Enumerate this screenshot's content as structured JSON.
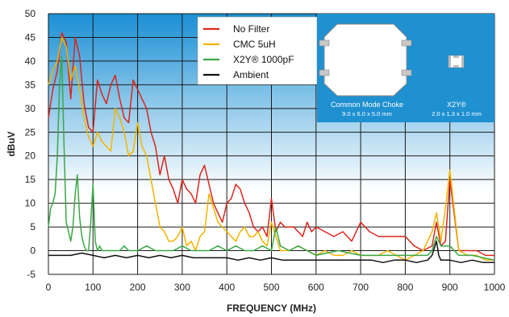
{
  "chart_data": {
    "type": "line",
    "title": "",
    "xlabel": "FREQUENCY (MHz)",
    "ylabel": "dBuV",
    "xlim": [
      0,
      1000
    ],
    "ylim": [
      -5,
      50
    ],
    "x_ticks": [
      0,
      100,
      200,
      300,
      400,
      500,
      600,
      700,
      800,
      900,
      1000
    ],
    "y_ticks": [
      -5,
      0,
      5,
      10,
      15,
      20,
      25,
      30,
      35,
      40,
      45,
      50
    ],
    "grid": true,
    "legend_position": "top-center",
    "series": [
      {
        "name": "No Filter",
        "color": "#d8261c",
        "x": [
          0,
          10,
          20,
          30,
          40,
          50,
          60,
          70,
          80,
          90,
          100,
          110,
          120,
          130,
          140,
          150,
          160,
          170,
          180,
          190,
          200,
          210,
          220,
          230,
          240,
          250,
          260,
          270,
          280,
          290,
          300,
          310,
          320,
          330,
          340,
          350,
          360,
          370,
          380,
          390,
          400,
          410,
          420,
          430,
          440,
          450,
          460,
          470,
          480,
          490,
          500,
          510,
          520,
          530,
          540,
          550,
          560,
          570,
          580,
          590,
          600,
          620,
          640,
          660,
          680,
          700,
          720,
          740,
          760,
          780,
          800,
          820,
          840,
          860,
          870,
          880,
          890,
          900,
          920,
          940,
          960,
          980,
          1000
        ],
        "y": [
          28,
          34,
          38,
          46,
          44,
          32,
          45,
          41,
          31,
          26,
          25,
          36,
          33,
          31,
          35,
          37,
          32,
          28,
          27,
          36,
          34,
          32,
          30,
          25,
          22,
          16,
          20,
          15,
          13,
          10,
          15,
          13,
          12,
          10,
          16,
          18,
          14,
          10,
          8,
          6,
          10,
          11,
          14,
          13,
          10,
          8,
          5,
          4,
          5,
          3,
          11,
          4,
          6,
          5,
          5,
          5,
          4,
          3,
          6,
          4,
          5,
          4,
          3,
          4,
          2,
          6,
          4,
          3,
          3,
          3,
          3,
          1,
          0,
          1,
          6,
          1,
          2,
          15,
          0,
          0,
          0,
          -1,
          -1
        ]
      },
      {
        "name": "CMC 5uH",
        "color": "#f4b400",
        "x": [
          0,
          10,
          20,
          30,
          40,
          50,
          60,
          70,
          80,
          90,
          100,
          110,
          120,
          130,
          140,
          150,
          160,
          170,
          180,
          190,
          200,
          210,
          220,
          230,
          240,
          250,
          260,
          270,
          280,
          290,
          300,
          310,
          320,
          330,
          340,
          350,
          360,
          370,
          380,
          390,
          400,
          410,
          420,
          430,
          440,
          450,
          460,
          470,
          480,
          490,
          500,
          520,
          540,
          560,
          580,
          600,
          620,
          640,
          660,
          680,
          700,
          720,
          740,
          760,
          780,
          800,
          820,
          840,
          860,
          870,
          880,
          890,
          900,
          920,
          940,
          960,
          980,
          1000
        ],
        "y": [
          35,
          38,
          40,
          45,
          43,
          36,
          39,
          34,
          28,
          24,
          22,
          25,
          23,
          22,
          21,
          30,
          28,
          25,
          20,
          21,
          27,
          22,
          20,
          15,
          10,
          5,
          4,
          2,
          2,
          3,
          5,
          1,
          2,
          0,
          3,
          4,
          12,
          9,
          6,
          5,
          4,
          3,
          2,
          4,
          5,
          3,
          3,
          4,
          2,
          1,
          6,
          0,
          0,
          1,
          0,
          -1,
          0,
          -1,
          -1,
          0,
          -1,
          -1,
          -1,
          0,
          -1,
          -2,
          -1,
          0,
          4,
          8,
          2,
          9,
          17,
          0,
          -1,
          -1,
          -2,
          -2
        ]
      },
      {
        "name": "X2Y® 1000pF",
        "color": "#3aa845",
        "x": [
          0,
          5,
          10,
          15,
          20,
          25,
          30,
          35,
          40,
          45,
          50,
          55,
          60,
          65,
          70,
          75,
          80,
          85,
          90,
          95,
          100,
          105,
          110,
          115,
          120,
          130,
          140,
          150,
          160,
          170,
          180,
          190,
          200,
          220,
          240,
          260,
          280,
          300,
          320,
          340,
          360,
          380,
          400,
          420,
          440,
          460,
          480,
          500,
          510,
          520,
          540,
          560,
          580,
          600,
          650,
          700,
          750,
          800,
          850,
          860,
          870,
          880,
          900,
          920,
          950,
          1000
        ],
        "y": [
          5,
          9,
          10,
          12,
          20,
          35,
          41,
          22,
          6,
          4,
          2,
          5,
          12,
          16,
          7,
          3,
          1,
          0,
          0,
          6,
          14,
          2,
          0,
          1,
          0,
          0,
          0,
          0,
          0,
          1,
          0,
          0,
          0,
          1,
          0,
          0,
          0,
          1,
          0,
          0,
          0,
          1,
          0,
          1,
          0,
          0,
          1,
          0,
          5,
          1,
          0,
          1,
          0,
          -1,
          0,
          -1,
          -1,
          -1,
          -1,
          0,
          3,
          1,
          1,
          -1,
          -1,
          -2
        ]
      },
      {
        "name": "Ambient",
        "color": "#111111",
        "x": [
          0,
          25,
          50,
          75,
          100,
          125,
          150,
          175,
          200,
          225,
          250,
          275,
          300,
          325,
          350,
          375,
          400,
          425,
          450,
          475,
          500,
          525,
          550,
          575,
          600,
          625,
          650,
          675,
          700,
          725,
          750,
          775,
          800,
          825,
          850,
          860,
          870,
          875,
          880,
          900,
          925,
          950,
          975,
          1000
        ],
        "y": [
          -1,
          -1,
          -1,
          -0.5,
          -1,
          -1.5,
          -1,
          -1.5,
          -1,
          -1.5,
          -1,
          -1.5,
          -1,
          -1.5,
          -1.5,
          -1.5,
          -1.5,
          -2,
          -1.5,
          -2,
          -1.5,
          -2,
          -2,
          -2,
          -2,
          -2,
          -2,
          -2,
          -2,
          -2,
          -2.5,
          -2,
          -2,
          -2.5,
          -2,
          -1,
          2,
          -1,
          -2,
          -2,
          -2.5,
          -2,
          -2.5,
          -2.5
        ]
      }
    ],
    "legend": [
      "No Filter",
      "CMC 5uH",
      "X2Y® 1000pF",
      "Ambient"
    ],
    "inset": {
      "left_label": "Common Mode Choke",
      "left_dims": "9.0 x 6.0 x 5.0 mm",
      "right_label": "X2Y®",
      "right_dims": "2.0 x 1.3 x 1.0 mm",
      "background": "#1f90d0"
    },
    "plot_gradient": [
      "#1a8fd4",
      "#ffffff"
    ]
  }
}
